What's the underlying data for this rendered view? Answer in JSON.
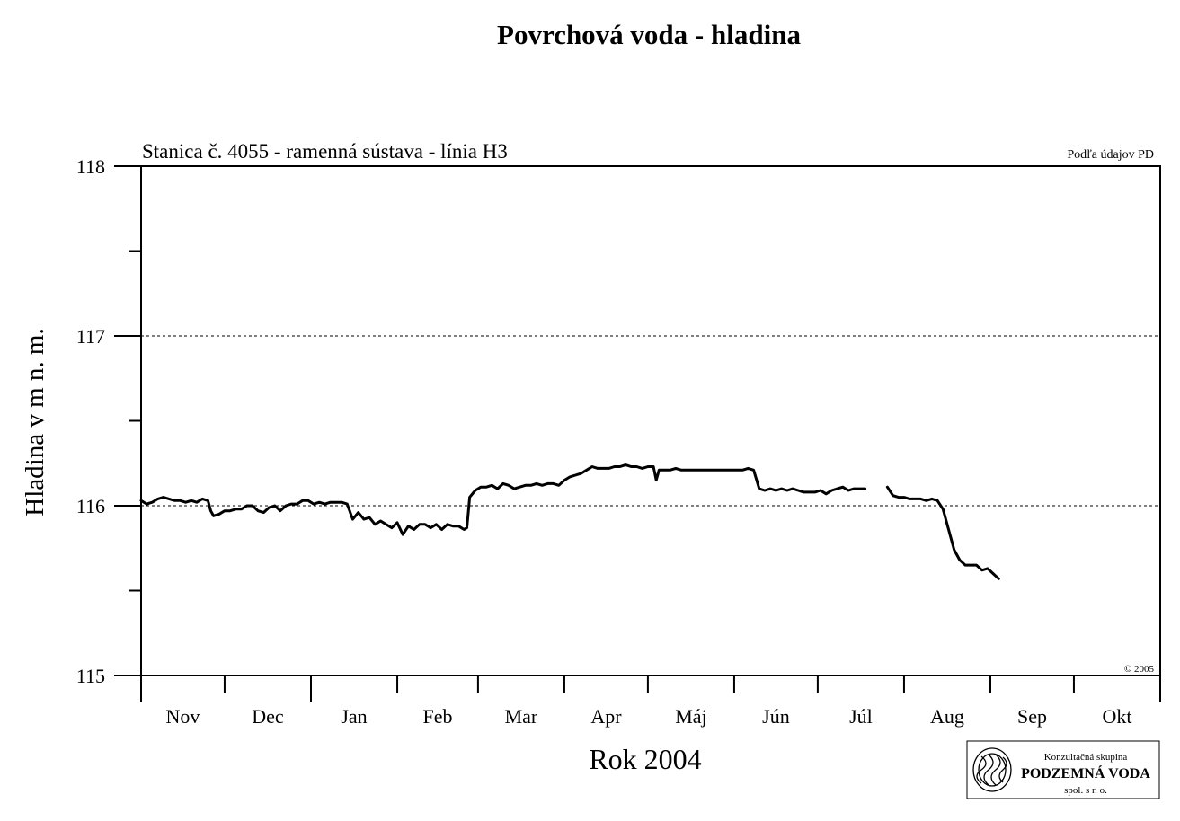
{
  "chart_data": {
    "type": "line",
    "title": "Povrchová voda - hladina",
    "subtitle": "Stanica č. 4055 - ramenná sústava - línia H3",
    "source_note": "Podľa údajov PD",
    "copyright": "© 2005",
    "xlabel": "Rok 2004",
    "ylabel": "Hladina v m n. m.",
    "ylim": [
      115,
      118
    ],
    "yticks": [
      115,
      116,
      117,
      118
    ],
    "grid_y": [
      116,
      117
    ],
    "month_labels": [
      "Nov",
      "Dec",
      "Jan",
      "Feb",
      "Mar",
      "Apr",
      "Máj",
      "Jún",
      "Júl",
      "Aug",
      "Sep",
      "Okt"
    ],
    "month_lengths": [
      30,
      31,
      31,
      29,
      31,
      30,
      31,
      30,
      31,
      31,
      30,
      31
    ],
    "series": [
      {
        "segments": [
          [
            [
              0,
              116.03
            ],
            [
              2,
              116.01
            ],
            [
              4,
              116.02
            ],
            [
              6,
              116.04
            ],
            [
              8,
              116.05
            ],
            [
              10,
              116.04
            ],
            [
              12,
              116.03
            ],
            [
              14,
              116.03
            ],
            [
              16,
              116.02
            ],
            [
              18,
              116.03
            ],
            [
              20,
              116.02
            ],
            [
              22,
              116.04
            ],
            [
              24,
              116.03
            ],
            [
              25,
              115.97
            ],
            [
              26,
              115.94
            ],
            [
              28,
              115.95
            ],
            [
              30,
              115.97
            ],
            [
              32,
              115.97
            ],
            [
              34,
              115.98
            ],
            [
              36,
              115.98
            ],
            [
              38,
              116.0
            ],
            [
              40,
              116.0
            ],
            [
              42,
              115.97
            ],
            [
              44,
              115.96
            ],
            [
              46,
              115.99
            ],
            [
              48,
              116.0
            ],
            [
              50,
              115.97
            ],
            [
              52,
              116.0
            ],
            [
              54,
              116.01
            ],
            [
              56,
              116.01
            ],
            [
              58,
              116.03
            ],
            [
              60,
              116.03
            ],
            [
              62,
              116.01
            ],
            [
              64,
              116.02
            ],
            [
              66,
              116.01
            ],
            [
              68,
              116.02
            ],
            [
              70,
              116.02
            ],
            [
              72,
              116.02
            ],
            [
              74,
              116.01
            ],
            [
              76,
              115.92
            ],
            [
              78,
              115.96
            ],
            [
              80,
              115.92
            ],
            [
              82,
              115.93
            ],
            [
              84,
              115.89
            ],
            [
              86,
              115.91
            ],
            [
              88,
              115.89
            ],
            [
              90,
              115.87
            ],
            [
              92,
              115.9
            ],
            [
              94,
              115.83
            ],
            [
              96,
              115.88
            ],
            [
              98,
              115.86
            ],
            [
              100,
              115.89
            ],
            [
              102,
              115.89
            ],
            [
              104,
              115.87
            ],
            [
              106,
              115.89
            ],
            [
              108,
              115.86
            ],
            [
              110,
              115.89
            ],
            [
              112,
              115.88
            ],
            [
              114,
              115.88
            ],
            [
              116,
              115.86
            ],
            [
              117,
              115.87
            ],
            [
              118,
              116.05
            ],
            [
              120,
              116.09
            ],
            [
              122,
              116.11
            ],
            [
              124,
              116.11
            ],
            [
              126,
              116.12
            ],
            [
              128,
              116.1
            ],
            [
              130,
              116.13
            ],
            [
              132,
              116.12
            ],
            [
              134,
              116.1
            ],
            [
              136,
              116.11
            ],
            [
              138,
              116.12
            ],
            [
              140,
              116.12
            ],
            [
              142,
              116.13
            ],
            [
              144,
              116.12
            ],
            [
              146,
              116.13
            ],
            [
              148,
              116.13
            ],
            [
              150,
              116.12
            ],
            [
              152,
              116.15
            ],
            [
              154,
              116.17
            ],
            [
              156,
              116.18
            ],
            [
              158,
              116.19
            ],
            [
              160,
              116.21
            ],
            [
              162,
              116.23
            ],
            [
              164,
              116.22
            ],
            [
              166,
              116.22
            ],
            [
              168,
              116.22
            ],
            [
              170,
              116.23
            ],
            [
              172,
              116.23
            ],
            [
              174,
              116.24
            ],
            [
              176,
              116.23
            ],
            [
              178,
              116.23
            ],
            [
              180,
              116.22
            ],
            [
              182,
              116.23
            ],
            [
              184,
              116.23
            ],
            [
              185,
              116.15
            ],
            [
              186,
              116.21
            ],
            [
              188,
              116.21
            ],
            [
              190,
              116.21
            ],
            [
              192,
              116.22
            ],
            [
              194,
              116.21
            ],
            [
              196,
              116.21
            ],
            [
              198,
              116.21
            ],
            [
              200,
              116.21
            ],
            [
              202,
              116.21
            ],
            [
              204,
              116.21
            ],
            [
              206,
              116.21
            ],
            [
              208,
              116.21
            ],
            [
              210,
              116.21
            ],
            [
              212,
              116.21
            ],
            [
              214,
              116.21
            ],
            [
              216,
              116.21
            ],
            [
              218,
              116.22
            ],
            [
              220,
              116.21
            ],
            [
              222,
              116.1
            ],
            [
              224,
              116.09
            ],
            [
              226,
              116.1
            ],
            [
              228,
              116.09
            ],
            [
              230,
              116.1
            ],
            [
              232,
              116.09
            ],
            [
              234,
              116.1
            ],
            [
              236,
              116.09
            ],
            [
              238,
              116.08
            ],
            [
              240,
              116.08
            ],
            [
              242,
              116.08
            ],
            [
              244,
              116.09
            ],
            [
              246,
              116.07
            ],
            [
              248,
              116.09
            ],
            [
              250,
              116.1
            ],
            [
              252,
              116.11
            ],
            [
              254,
              116.09
            ],
            [
              256,
              116.1
            ],
            [
              258,
              116.1
            ],
            [
              260,
              116.1
            ]
          ],
          [
            [
              268,
              116.11
            ],
            [
              270,
              116.06
            ],
            [
              272,
              116.05
            ],
            [
              274,
              116.05
            ],
            [
              276,
              116.04
            ],
            [
              278,
              116.04
            ],
            [
              280,
              116.04
            ],
            [
              282,
              116.03
            ],
            [
              284,
              116.04
            ],
            [
              286,
              116.03
            ],
            [
              288,
              115.98
            ],
            [
              290,
              115.86
            ],
            [
              292,
              115.74
            ],
            [
              294,
              115.68
            ],
            [
              296,
              115.65
            ],
            [
              298,
              115.65
            ],
            [
              300,
              115.65
            ],
            [
              302,
              115.62
            ],
            [
              304,
              115.63
            ],
            [
              306,
              115.6
            ],
            [
              308,
              115.57
            ]
          ]
        ]
      }
    ]
  },
  "logo": {
    "line1": "Konzultačná skupina",
    "line2": "PODZEMNÁ VODA",
    "line3": "spol. s r. o."
  }
}
